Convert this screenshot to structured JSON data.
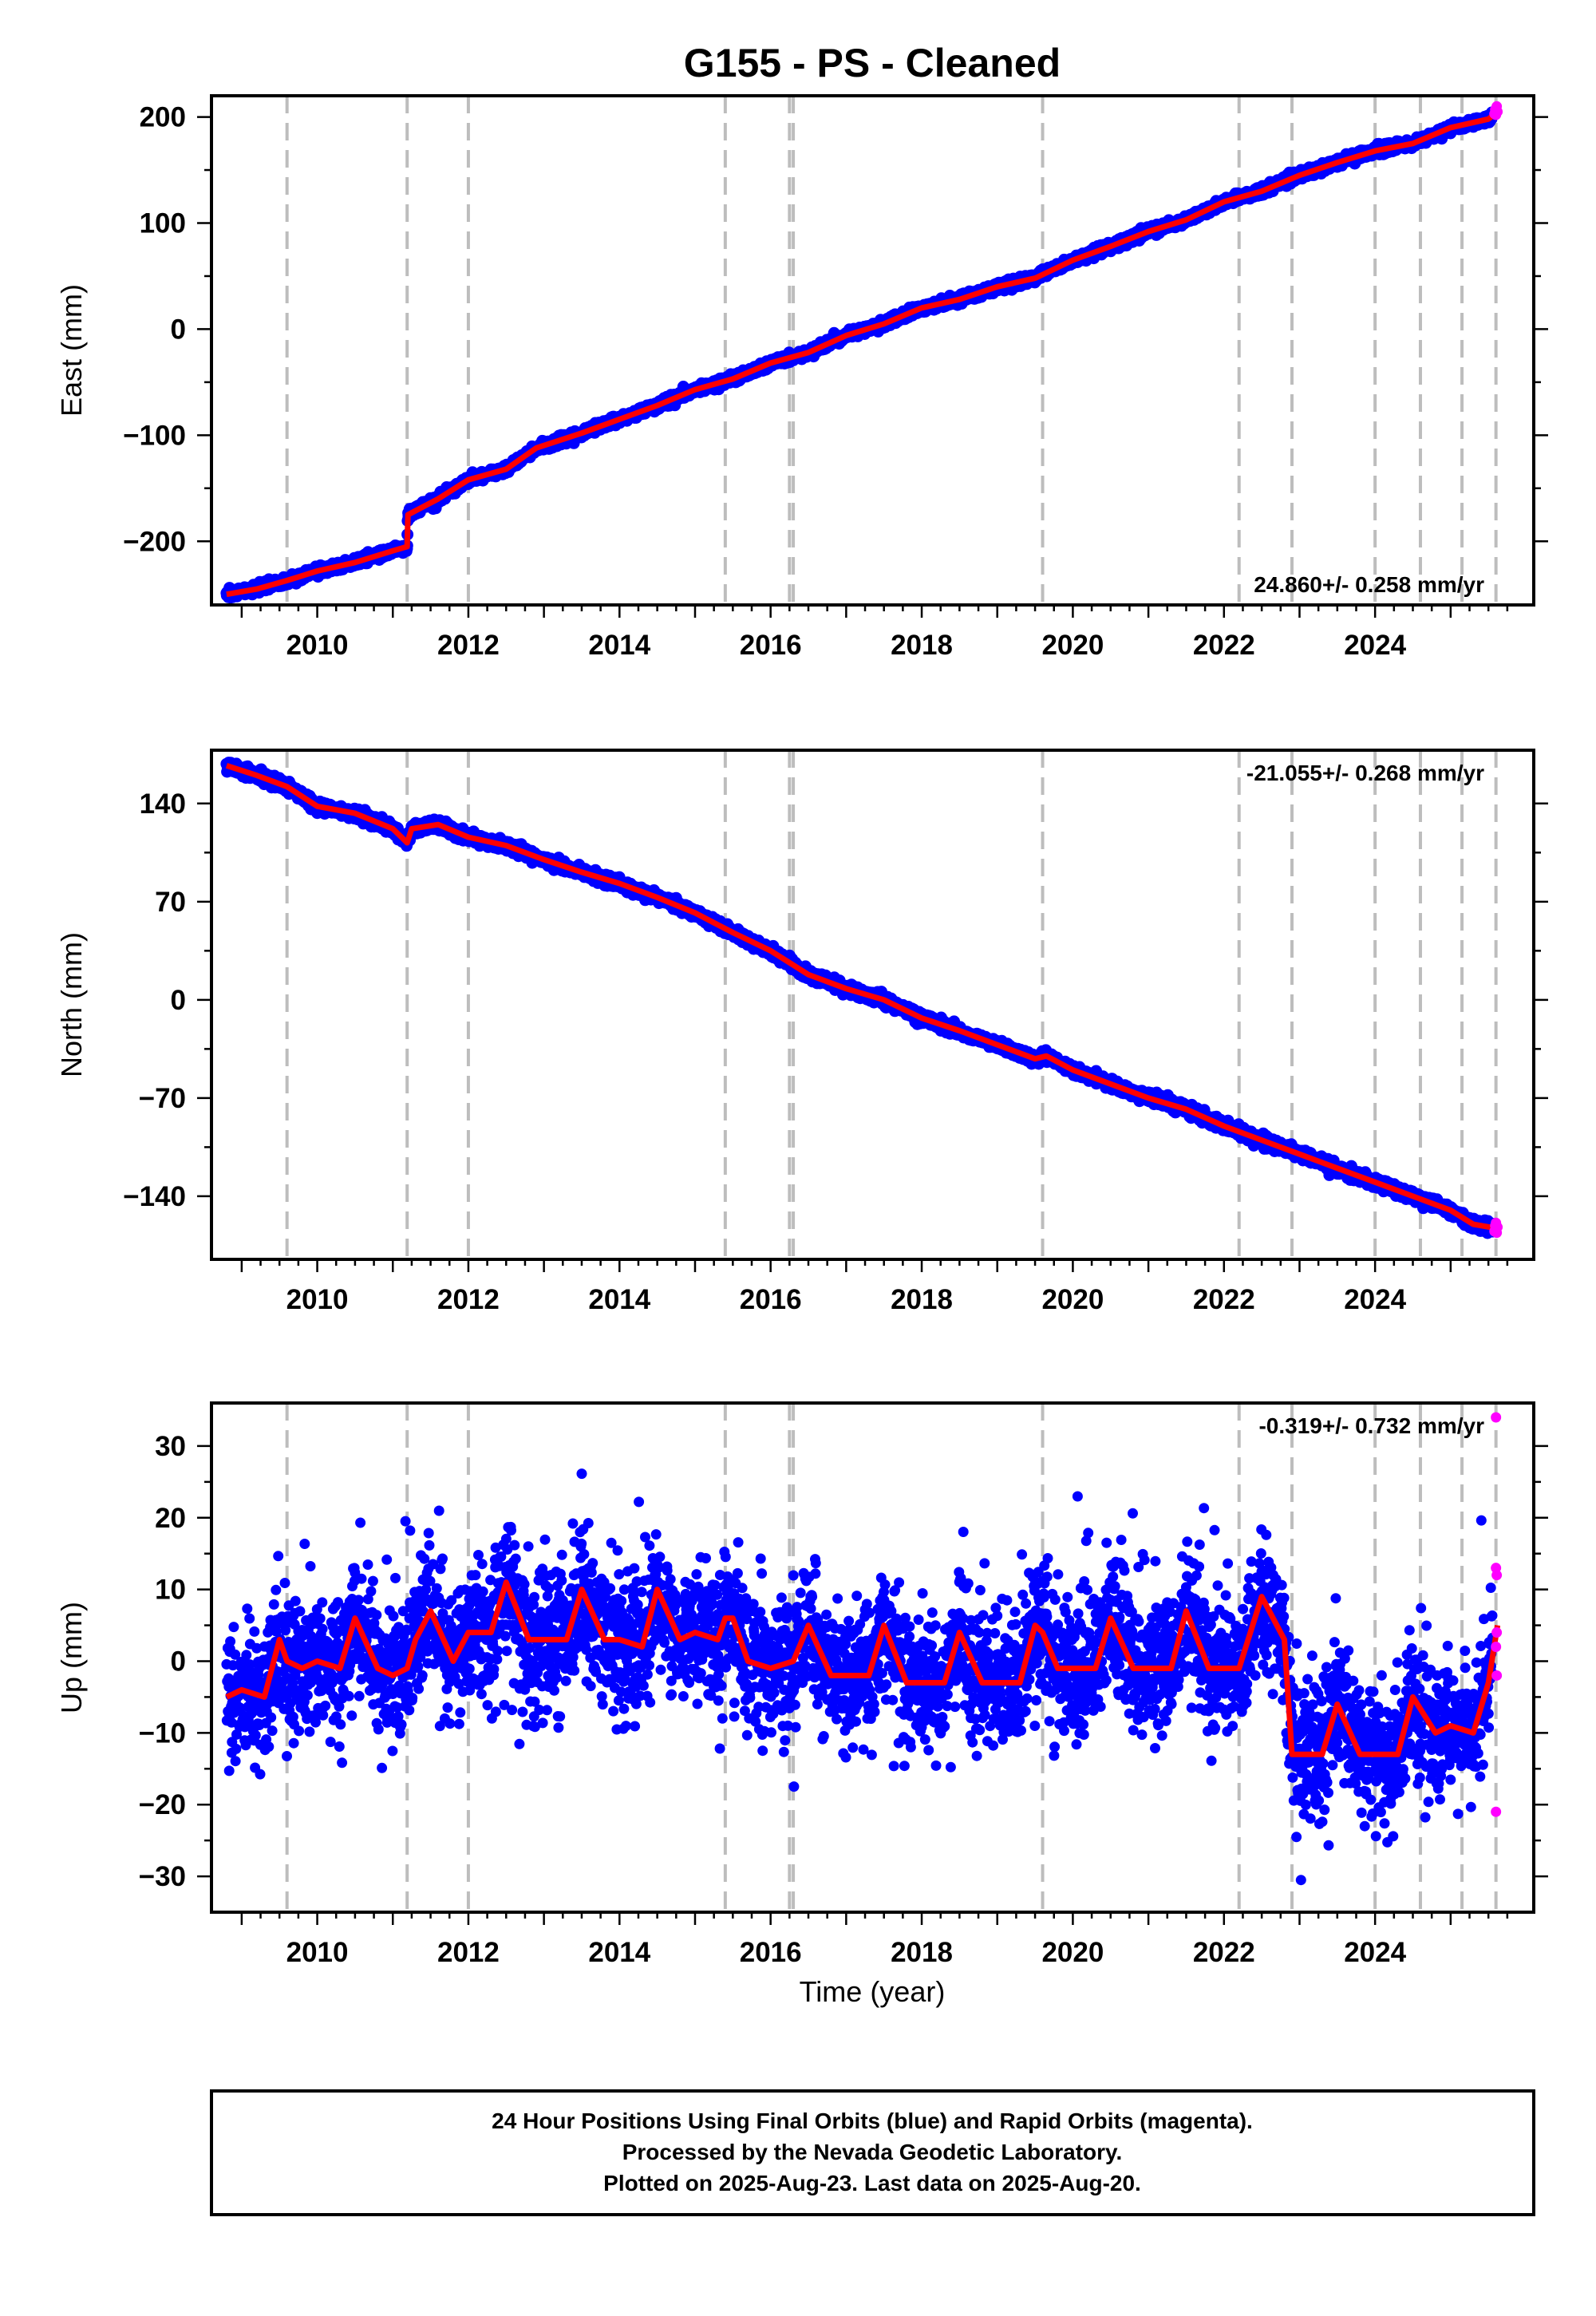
{
  "title": "G155  - PS - Cleaned",
  "xlabel": "Time (year)",
  "footer": {
    "line1": "24 Hour Positions Using Final Orbits (blue) and Rapid Orbits (magenta).",
    "line2": "Processed by the Nevada Geodetic Laboratory.",
    "line3": "Plotted on 2025-Aug-23. Last data on 2025-Aug-20."
  },
  "colors": {
    "final_orbits": "#0000ff",
    "rapid_orbits": "#ff00ff",
    "model": "#ff0000",
    "event_lines": "#bdbdbd"
  },
  "chart_data": [
    {
      "type": "scatter",
      "ylabel": "East (mm)",
      "rate_text": "24.860+/- 0.258 mm/yr",
      "xlim": [
        2008.6,
        2026.1
      ],
      "ylim": [
        -260,
        220
      ],
      "xticks": [
        2010,
        2012,
        2014,
        2016,
        2018,
        2020,
        2022,
        2024
      ],
      "yticks": [
        -200,
        -100,
        0,
        100,
        200
      ],
      "ytick_labels": [
        "−200",
        "−100",
        "0",
        "100",
        "200"
      ],
      "event_lines": [
        2009.6,
        2011.19,
        2012.0,
        2015.4,
        2016.25,
        2016.3,
        2019.6,
        2022.2,
        2022.9,
        2024.0,
        2024.6,
        2025.15,
        2025.6
      ],
      "series": [
        {
          "role": "model",
          "x": [
            2008.8,
            2009.2,
            2009.6,
            2010.0,
            2010.5,
            2011.0,
            2011.19,
            2011.2,
            2011.6,
            2012.0,
            2012.5,
            2012.9,
            2013.5,
            2014.0,
            2014.5,
            2015.0,
            2015.5,
            2016.0,
            2016.5,
            2017.0,
            2017.5,
            2018.0,
            2018.5,
            2019.0,
            2019.5,
            2020.0,
            2020.5,
            2021.0,
            2021.5,
            2022.0,
            2022.5,
            2023.0,
            2023.5,
            2024.0,
            2024.5,
            2025.0,
            2025.5,
            2025.62
          ],
          "y": [
            -250,
            -245,
            -237,
            -228,
            -220,
            -209,
            -205,
            -175,
            -160,
            -142,
            -132,
            -112,
            -98,
            -85,
            -72,
            -57,
            -47,
            -32,
            -22,
            -6,
            5,
            20,
            28,
            40,
            48,
            65,
            78,
            92,
            103,
            120,
            130,
            145,
            157,
            168,
            175,
            190,
            198,
            205
          ]
        },
        {
          "role": "rapid",
          "x": [
            2025.58,
            2025.59,
            2025.6,
            2025.61,
            2025.62
          ],
          "y": [
            203,
            207,
            202,
            210,
            205
          ]
        }
      ]
    },
    {
      "type": "scatter",
      "ylabel": "North (mm)",
      "rate_text": "-21.055+/- 0.268 mm/yr",
      "xlim": [
        2008.6,
        2026.1
      ],
      "ylim": [
        -185,
        178
      ],
      "xticks": [
        2010,
        2012,
        2014,
        2016,
        2018,
        2020,
        2022,
        2024
      ],
      "yticks": [
        -140,
        -70,
        0,
        70,
        140
      ],
      "ytick_labels": [
        "−140",
        "−70",
        "0",
        "70",
        "140"
      ],
      "event_lines": [
        2009.6,
        2011.19,
        2012.0,
        2015.4,
        2016.25,
        2016.3,
        2019.6,
        2022.2,
        2022.9,
        2024.0,
        2024.6,
        2025.15,
        2025.6
      ],
      "series": [
        {
          "role": "model",
          "x": [
            2008.8,
            2009.2,
            2009.6,
            2010.0,
            2010.5,
            2011.0,
            2011.19,
            2011.25,
            2011.6,
            2012.0,
            2012.5,
            2013.0,
            2013.5,
            2014.0,
            2014.5,
            2015.0,
            2015.5,
            2016.0,
            2016.5,
            2017.0,
            2017.5,
            2018.0,
            2018.5,
            2019.0,
            2019.5,
            2019.65,
            2020.0,
            2020.5,
            2021.0,
            2021.5,
            2022.0,
            2022.5,
            2023.0,
            2023.5,
            2024.0,
            2024.5,
            2025.0,
            2025.3,
            2025.62
          ],
          "y": [
            167,
            160,
            152,
            138,
            133,
            122,
            112,
            122,
            125,
            116,
            110,
            100,
            91,
            83,
            73,
            62,
            48,
            35,
            18,
            8,
            0,
            -13,
            -22,
            -32,
            -42,
            -40,
            -50,
            -60,
            -70,
            -78,
            -90,
            -100,
            -110,
            -120,
            -130,
            -140,
            -150,
            -160,
            -163
          ]
        },
        {
          "role": "rapid",
          "x": [
            2025.58,
            2025.59,
            2025.6,
            2025.61,
            2025.62
          ],
          "y": [
            -165,
            -161,
            -159,
            -166,
            -162
          ]
        }
      ]
    },
    {
      "type": "scatter",
      "ylabel": "Up (mm)",
      "rate_text": "-0.319+/- 0.732 mm/yr",
      "xlim": [
        2008.6,
        2026.1
      ],
      "ylim": [
        -35,
        36
      ],
      "xticks": [
        2010,
        2012,
        2014,
        2016,
        2018,
        2020,
        2022,
        2024
      ],
      "yticks": [
        -30,
        -20,
        -10,
        0,
        10,
        20,
        30
      ],
      "ytick_labels": [
        "−30",
        "−20",
        "−10",
        "0",
        "10",
        "20",
        "30"
      ],
      "event_lines": [
        2009.6,
        2011.19,
        2012.0,
        2015.4,
        2016.25,
        2016.3,
        2019.6,
        2022.2,
        2022.9,
        2024.0,
        2024.6,
        2025.15,
        2025.6
      ],
      "series": [
        {
          "role": "model",
          "x": [
            2008.8,
            2009.0,
            2009.3,
            2009.5,
            2009.6,
            2009.8,
            2010.0,
            2010.3,
            2010.5,
            2010.8,
            2011.0,
            2011.19,
            2011.3,
            2011.5,
            2011.8,
            2012.0,
            2012.3,
            2012.5,
            2012.8,
            2013.0,
            2013.3,
            2013.5,
            2013.8,
            2014.0,
            2014.3,
            2014.5,
            2014.8,
            2015.0,
            2015.3,
            2015.4,
            2015.5,
            2015.7,
            2016.0,
            2016.3,
            2016.5,
            2016.8,
            2017.0,
            2017.3,
            2017.5,
            2017.8,
            2018.0,
            2018.3,
            2018.5,
            2018.8,
            2019.0,
            2019.3,
            2019.5,
            2019.6,
            2019.8,
            2020.0,
            2020.3,
            2020.5,
            2020.8,
            2021.0,
            2021.3,
            2021.5,
            2021.8,
            2022.0,
            2022.2,
            2022.5,
            2022.8,
            2022.9,
            2023.0,
            2023.3,
            2023.5,
            2023.8,
            2024.0,
            2024.3,
            2024.5,
            2024.8,
            2025.0,
            2025.3,
            2025.5,
            2025.62
          ],
          "y": [
            -5,
            -4,
            -5,
            3,
            0,
            -1,
            0,
            -1,
            6,
            -1,
            -2,
            -1,
            3,
            7,
            0,
            4,
            4,
            11,
            3,
            3,
            3,
            10,
            3,
            3,
            2,
            10,
            3,
            4,
            3,
            6,
            6,
            0,
            -1,
            0,
            5,
            -2,
            -2,
            -2,
            5,
            -3,
            -3,
            -3,
            4,
            -3,
            -3,
            -3,
            5,
            4,
            -1,
            -1,
            -1,
            6,
            -1,
            -1,
            -1,
            7,
            -1,
            -1,
            -1,
            9,
            3,
            -13,
            -13,
            -13,
            -6,
            -13,
            -13,
            -13,
            -5,
            -10,
            -9,
            -10,
            -3,
            5
          ]
        },
        {
          "role": "rapid",
          "x": [
            2025.6,
            2025.6,
            2025.61,
            2025.61,
            2025.6,
            2025.61,
            2025.6
          ],
          "y": [
            34,
            13,
            12,
            4,
            2,
            -2,
            -21
          ]
        }
      ]
    }
  ]
}
